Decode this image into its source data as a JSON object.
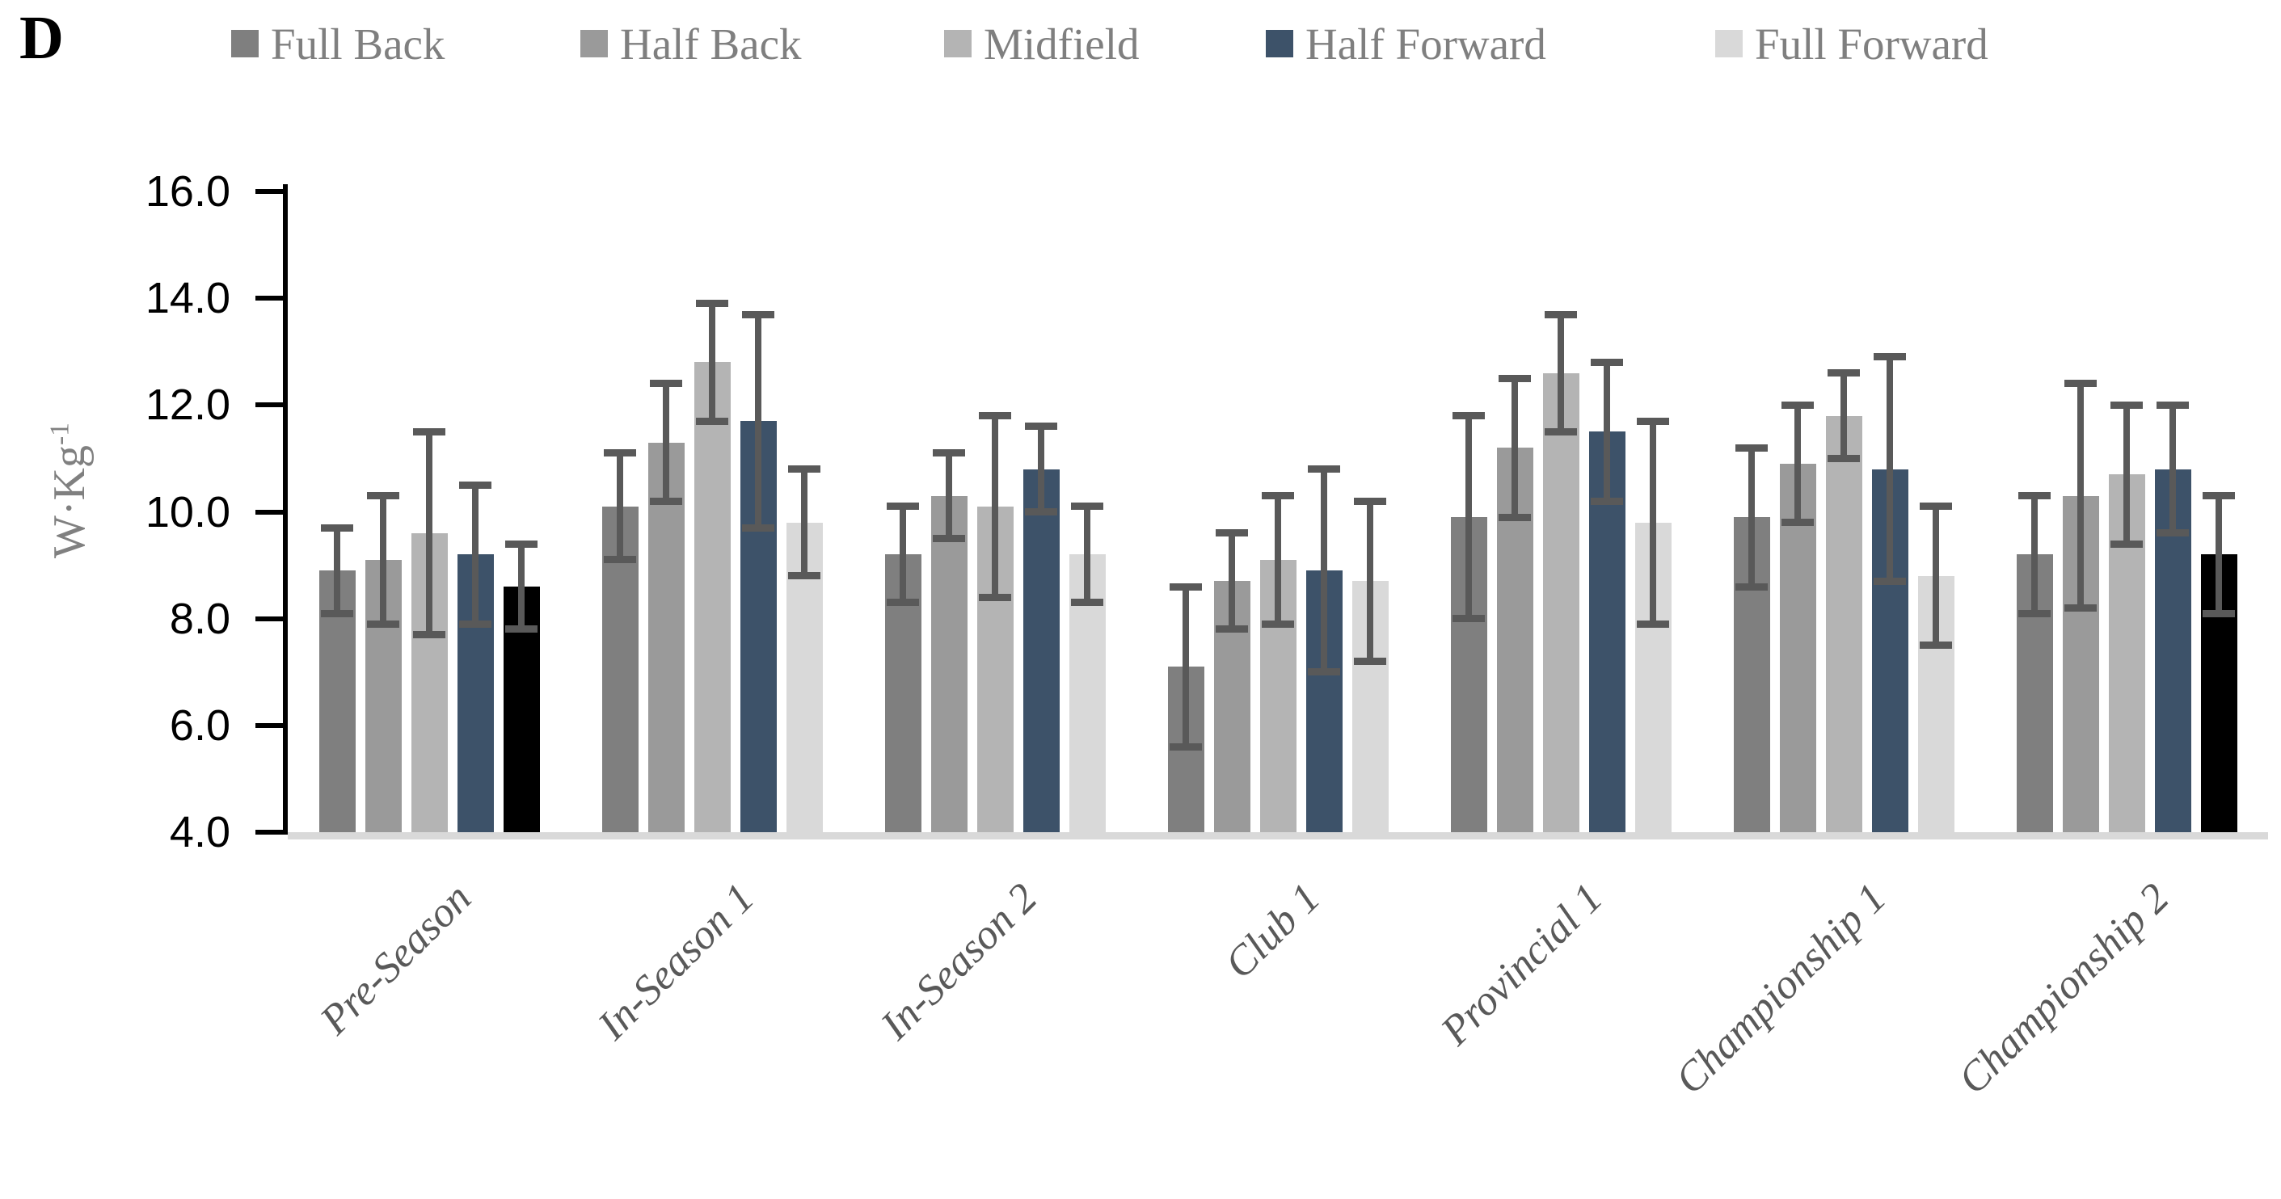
{
  "figure": {
    "panel_label": "D",
    "y_axis": {
      "label_main": "W·Kg",
      "label_sup": "-1",
      "tick_labels": [
        "16.0",
        "14.0",
        "12.0",
        "10.0",
        "8.0",
        "6.0",
        "4.0"
      ],
      "tick_values": [
        16.0,
        14.0,
        12.0,
        10.0,
        8.0,
        6.0,
        4.0
      ]
    },
    "colors": {
      "error_bar": "#595959",
      "axis_line": "#000000",
      "baseline_strip": "#d9d9d9",
      "legend_text": "#7f7f7f",
      "x_label_text": "#595959",
      "y_title_text": "#808080"
    }
  },
  "chart_data": {
    "type": "bar",
    "title": "",
    "ylabel": "W·Kg⁻¹",
    "xlabel": "",
    "ylim": [
      4.0,
      16.0
    ],
    "ytick_step": 2.0,
    "grid": false,
    "legend_position": "top",
    "error_bars": true,
    "categories": [
      "Pre-Season",
      "In-Season 1",
      "In-Season 2",
      "Club 1",
      "Provincial 1",
      "Championship 1",
      "Championship 2"
    ],
    "series": [
      {
        "name": "Full Back",
        "color": "#7f7f7f",
        "values": [
          8.9,
          10.1,
          9.2,
          7.1,
          9.9,
          9.9,
          9.2
        ],
        "errors": [
          0.8,
          1.0,
          0.9,
          1.5,
          1.9,
          1.3,
          1.1
        ]
      },
      {
        "name": "Half Back",
        "color": "#9a9a9a",
        "values": [
          9.1,
          11.3,
          10.3,
          8.7,
          11.2,
          10.9,
          10.3
        ],
        "errors": [
          1.2,
          1.1,
          0.8,
          0.9,
          1.3,
          1.1,
          2.1
        ]
      },
      {
        "name": "Midfield",
        "color": "#b4b4b4",
        "values": [
          9.6,
          12.8,
          10.1,
          9.1,
          12.6,
          11.8,
          10.7
        ],
        "errors": [
          1.9,
          1.1,
          1.7,
          1.2,
          1.1,
          0.8,
          1.3
        ]
      },
      {
        "name": "Half Forward",
        "color": "#3d5269",
        "values": [
          9.2,
          11.7,
          10.8,
          8.9,
          11.5,
          10.8,
          10.8
        ],
        "errors": [
          1.3,
          2.0,
          0.8,
          1.9,
          1.3,
          2.1,
          1.2
        ]
      },
      {
        "name": "Full Forward",
        "color": "#d9d9d9",
        "values": [
          8.6,
          9.8,
          9.2,
          8.7,
          9.8,
          8.8,
          9.2
        ],
        "errors": [
          0.8,
          1.0,
          0.9,
          1.5,
          1.9,
          1.3,
          1.1
        ]
      }
    ],
    "bar_color_overrides": [
      {
        "category_index": 0,
        "series_index": 4,
        "color": "#000000"
      },
      {
        "category_index": 6,
        "series_index": 4,
        "color": "#000000"
      }
    ]
  }
}
